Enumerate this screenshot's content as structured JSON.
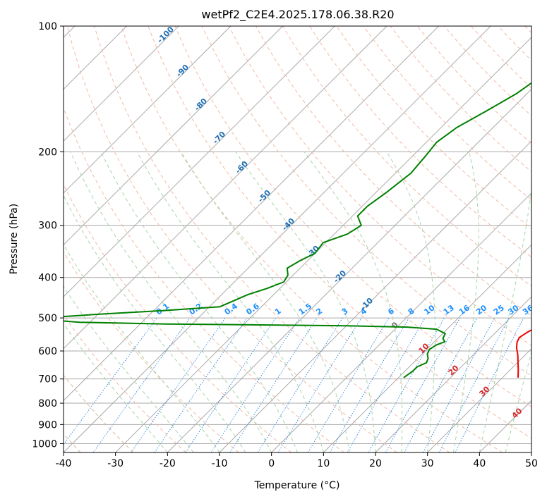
{
  "chart_data": {
    "type": "line",
    "title": "wetPf2_C2E4.2025.178.06.38.R20",
    "xlabel": "Temperature (°C)",
    "ylabel": "Pressure (hPa)",
    "xlim": [
      -40,
      50
    ],
    "ylim": [
      1050,
      100
    ],
    "y_scale": "log",
    "grid": true,
    "x_ticks": [
      -40,
      -30,
      -20,
      -10,
      0,
      10,
      20,
      30,
      40,
      50
    ],
    "y_ticks": [
      1000,
      900,
      800,
      700,
      600,
      500,
      400,
      300,
      200,
      100
    ],
    "skew": true,
    "series": [
      {
        "color": "#ee0000",
        "points": [
          [
            2.5,
            100
          ],
          [
            2.0,
            110
          ],
          [
            2.0,
            120
          ],
          [
            2.5,
            130
          ],
          [
            4.0,
            145
          ],
          [
            6.0,
            160
          ],
          [
            7.5,
            175
          ],
          [
            8.5,
            190
          ],
          [
            9.5,
            205
          ],
          [
            10.5,
            225
          ],
          [
            12.0,
            245
          ],
          [
            13.5,
            265
          ],
          [
            15.0,
            285
          ],
          [
            16.5,
            305
          ],
          [
            18.0,
            325
          ],
          [
            19.5,
            345
          ],
          [
            21.0,
            365
          ],
          [
            22.5,
            385
          ],
          [
            24.5,
            410
          ],
          [
            26.0,
            435
          ],
          [
            27.5,
            460
          ],
          [
            28.5,
            480
          ],
          [
            28.5,
            495
          ],
          [
            29.0,
            505
          ],
          [
            28.0,
            512
          ],
          [
            27.0,
            522
          ],
          [
            26.0,
            542
          ],
          [
            25.5,
            557
          ],
          [
            26.0,
            572
          ],
          [
            27.0,
            590
          ],
          [
            28.5,
            612
          ],
          [
            30.0,
            638
          ],
          [
            31.5,
            665
          ],
          [
            33.0,
            695
          ]
        ]
      },
      {
        "color": "#008000",
        "points": [
          [
            -22.5,
            100
          ],
          [
            -22.5,
            110
          ],
          [
            -22.0,
            120
          ],
          [
            -20.5,
            130
          ],
          [
            -22.0,
            145
          ],
          [
            -24.5,
            160
          ],
          [
            -27.0,
            175
          ],
          [
            -28.0,
            190
          ],
          [
            -27.5,
            205
          ],
          [
            -27.0,
            225
          ],
          [
            -28.0,
            250
          ],
          [
            -29.0,
            270
          ],
          [
            -29.0,
            285
          ],
          [
            -26.5,
            300
          ],
          [
            -27.5,
            315
          ],
          [
            -30.5,
            330
          ],
          [
            -30.0,
            350
          ],
          [
            -31.5,
            365
          ],
          [
            -32.5,
            380
          ],
          [
            -31.0,
            395
          ],
          [
            -30.5,
            410
          ],
          [
            -32.5,
            425
          ],
          [
            -35.0,
            440
          ],
          [
            -36.5,
            455
          ],
          [
            -38.0,
            470
          ],
          [
            -48.0,
            480
          ],
          [
            -60.0,
            490
          ],
          [
            -70.0,
            500
          ],
          [
            -68.0,
            506
          ],
          [
            -62.0,
            512
          ],
          [
            -45.0,
            517
          ],
          [
            -30.0,
            519
          ],
          [
            -10.0,
            522
          ],
          [
            2.0,
            526
          ],
          [
            8.0,
            532
          ],
          [
            10.5,
            545
          ],
          [
            11.0,
            560
          ],
          [
            12.0,
            570
          ],
          [
            11.0,
            580
          ],
          [
            10.5,
            595
          ],
          [
            11.0,
            610
          ],
          [
            12.0,
            625
          ],
          [
            12.5,
            640
          ],
          [
            11.5,
            655
          ],
          [
            11.5,
            670
          ],
          [
            11.0,
            695
          ]
        ]
      }
    ],
    "dry_adiabat_labels": [
      "-100",
      "-90",
      "-80",
      "-70",
      "-60",
      "-50",
      "-40",
      "-30",
      "-20",
      "-10",
      "0",
      "10",
      "20",
      "30",
      "40"
    ],
    "mixing_ratio_labels": [
      "0.1",
      "0.2",
      "0.4",
      "0.6",
      "1",
      "1.5",
      "2",
      "3",
      "4",
      "6",
      "8",
      "10",
      "13",
      "16",
      "20",
      "25",
      "30",
      "36"
    ]
  }
}
